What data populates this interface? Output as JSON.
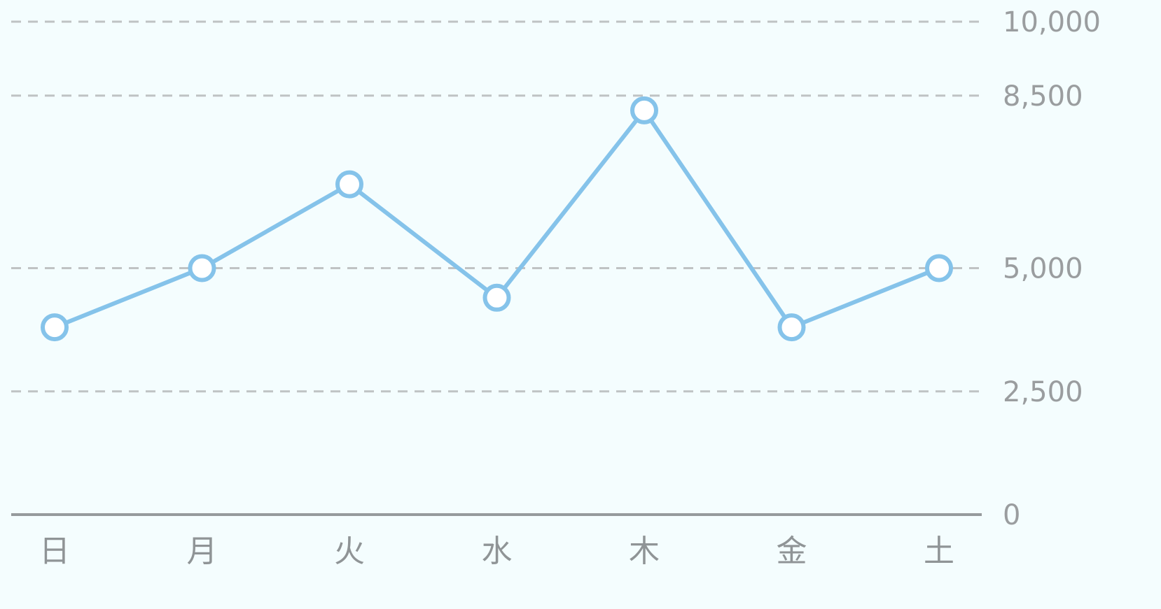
{
  "chart_data": {
    "type": "line",
    "categories": [
      "日",
      "月",
      "火",
      "水",
      "木",
      "金",
      "土"
    ],
    "series": [
      {
        "values": [
          3800,
          5000,
          6700,
          4400,
          8200,
          3800,
          5000
        ]
      }
    ],
    "ylim": [
      0,
      10000
    ],
    "yticks": [
      0,
      2500,
      5000,
      8500,
      10000
    ],
    "ytick_labels": [
      "0",
      "2,500",
      "5,000",
      "8,500",
      "10,000"
    ],
    "grid": true,
    "y_axis_position": "right",
    "colors": {
      "background": "#f4fdfe",
      "line": "#85c3ea",
      "grid": "#bfc3c4",
      "axis": "#959a9c",
      "text": "#9a9d9f"
    }
  }
}
